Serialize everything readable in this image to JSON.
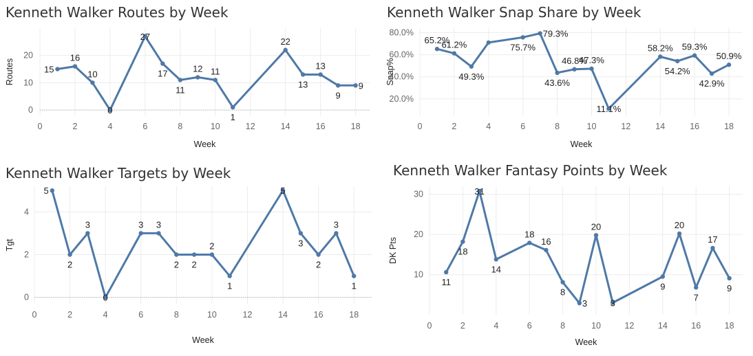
{
  "chart_data": [
    {
      "id": "routes",
      "type": "line",
      "title": "Kenneth Walker Routes by Week",
      "xlabel": "Week",
      "ylabel": "Routes",
      "xlim": [
        0,
        18.8
      ],
      "ylim": [
        -2,
        30
      ],
      "x_ticks": [
        "0",
        "2",
        "4",
        "6",
        "8",
        "10",
        "12",
        "14",
        "16",
        "18"
      ],
      "y_ticks": [
        "0",
        "10",
        "20"
      ],
      "y_tick_values": [
        0,
        10,
        20
      ],
      "zero_line": true,
      "x": [
        1,
        2,
        3,
        4,
        6,
        7,
        8,
        9,
        10,
        11,
        14,
        15,
        16,
        17,
        18
      ],
      "values": [
        15,
        16,
        10,
        0,
        27,
        17,
        11,
        12,
        11,
        1,
        22,
        13,
        13,
        9,
        9
      ],
      "data_labels": [
        "15",
        "16",
        "10",
        "0",
        "27",
        "17",
        "11",
        "12",
        "11",
        "1",
        "22",
        "13",
        "13",
        "9",
        "9"
      ],
      "label_pos": [
        "left",
        "above",
        "above",
        "center",
        "center",
        "below",
        "below",
        "above",
        "above",
        "below",
        "above",
        "below",
        "above",
        "below",
        "right"
      ],
      "color": "#4e79a7"
    },
    {
      "id": "snap",
      "type": "line",
      "title": "Kenneth Walker Snap Share by Week",
      "xlabel": "Week",
      "ylabel": "Snap%",
      "xlim": [
        0,
        18.8
      ],
      "ylim": [
        0.05,
        0.84
      ],
      "x_ticks": [
        "0",
        "2",
        "4",
        "6",
        "8",
        "10",
        "12",
        "14",
        "16",
        "18"
      ],
      "y_ticks": [
        "20.0%",
        "40.0%",
        "60.0%",
        "80.0%"
      ],
      "y_tick_values": [
        0.2,
        0.4,
        0.6,
        0.8
      ],
      "zero_line": false,
      "x": [
        1,
        2,
        3,
        4,
        6,
        7,
        8,
        9,
        10,
        11,
        14,
        15,
        16,
        17,
        18
      ],
      "values": [
        0.652,
        0.612,
        0.493,
        0.71,
        0.757,
        0.793,
        0.436,
        0.468,
        0.473,
        0.111,
        0.582,
        0.542,
        0.593,
        0.429,
        0.509
      ],
      "data_labels": [
        "65.2%",
        "61.2%",
        "49.3%",
        "",
        "75.7%",
        "79.3%",
        "43.6%",
        "46.8%",
        "47.3%",
        "11.1%",
        "58.2%",
        "54.2%",
        "59.3%",
        "42.9%",
        "50.9%"
      ],
      "label_pos": [
        "above",
        "above",
        "below",
        "none",
        "below",
        "right",
        "below",
        "above",
        "above",
        "center",
        "above",
        "below",
        "above",
        "below",
        "above"
      ],
      "color": "#4e79a7"
    },
    {
      "id": "targets",
      "type": "line",
      "title": "Kenneth Walker Targets by Week",
      "xlabel": "Week",
      "ylabel": "Tgt",
      "xlim": [
        0,
        19
      ],
      "ylim": [
        -0.3,
        5.2
      ],
      "x_ticks": [
        "0",
        "2",
        "4",
        "6",
        "8",
        "10",
        "12",
        "14",
        "16",
        "18"
      ],
      "y_ticks": [
        "0",
        "2",
        "4"
      ],
      "y_tick_values": [
        0,
        2,
        4
      ],
      "zero_line": true,
      "x": [
        1,
        2,
        3,
        4,
        6,
        7,
        8,
        9,
        10,
        11,
        14,
        15,
        16,
        17,
        18
      ],
      "values": [
        5,
        2,
        3,
        0,
        3,
        3,
        2,
        2,
        2,
        1,
        5,
        3,
        2,
        3,
        1
      ],
      "data_labels": [
        "5",
        "2",
        "3",
        "0",
        "3",
        "3",
        "2",
        "2",
        "2",
        "1",
        "5",
        "3",
        "2",
        "3",
        "1"
      ],
      "label_pos": [
        "left",
        "below",
        "above",
        "center",
        "above",
        "above",
        "below",
        "below",
        "above",
        "below",
        "center",
        "below",
        "below",
        "above",
        "below"
      ],
      "color": "#4e79a7"
    },
    {
      "id": "fantasy",
      "type": "line",
      "title": "Kenneth Walker Fantasy Points by Week",
      "xlabel": "Week",
      "ylabel": "DK Pts",
      "xlim": [
        0,
        18.8
      ],
      "ylim": [
        0,
        32
      ],
      "x_ticks": [
        "0",
        "2",
        "4",
        "6",
        "8",
        "10",
        "12",
        "14",
        "16",
        "18"
      ],
      "y_ticks": [
        "10",
        "20",
        "30"
      ],
      "y_tick_values": [
        10,
        20,
        30
      ],
      "zero_line": false,
      "x": [
        1,
        2,
        3,
        4,
        6,
        7,
        8,
        9,
        10,
        11,
        14,
        15,
        16,
        17,
        18
      ],
      "values": [
        10.6,
        18.2,
        30.8,
        13.8,
        17.9,
        16.1,
        8.1,
        2.9,
        19.8,
        3.0,
        9.5,
        20.2,
        6.8,
        16.6,
        9.1
      ],
      "data_labels": [
        "11",
        "18",
        "31",
        "14",
        "18",
        "16",
        "8",
        "3",
        "20",
        "3",
        "9",
        "20",
        "7",
        "17",
        "9"
      ],
      "label_pos": [
        "below",
        "below",
        "center",
        "below",
        "above",
        "above",
        "below",
        "right",
        "above",
        "center",
        "below",
        "above",
        "below",
        "above",
        "below"
      ],
      "color": "#4e79a7"
    }
  ]
}
